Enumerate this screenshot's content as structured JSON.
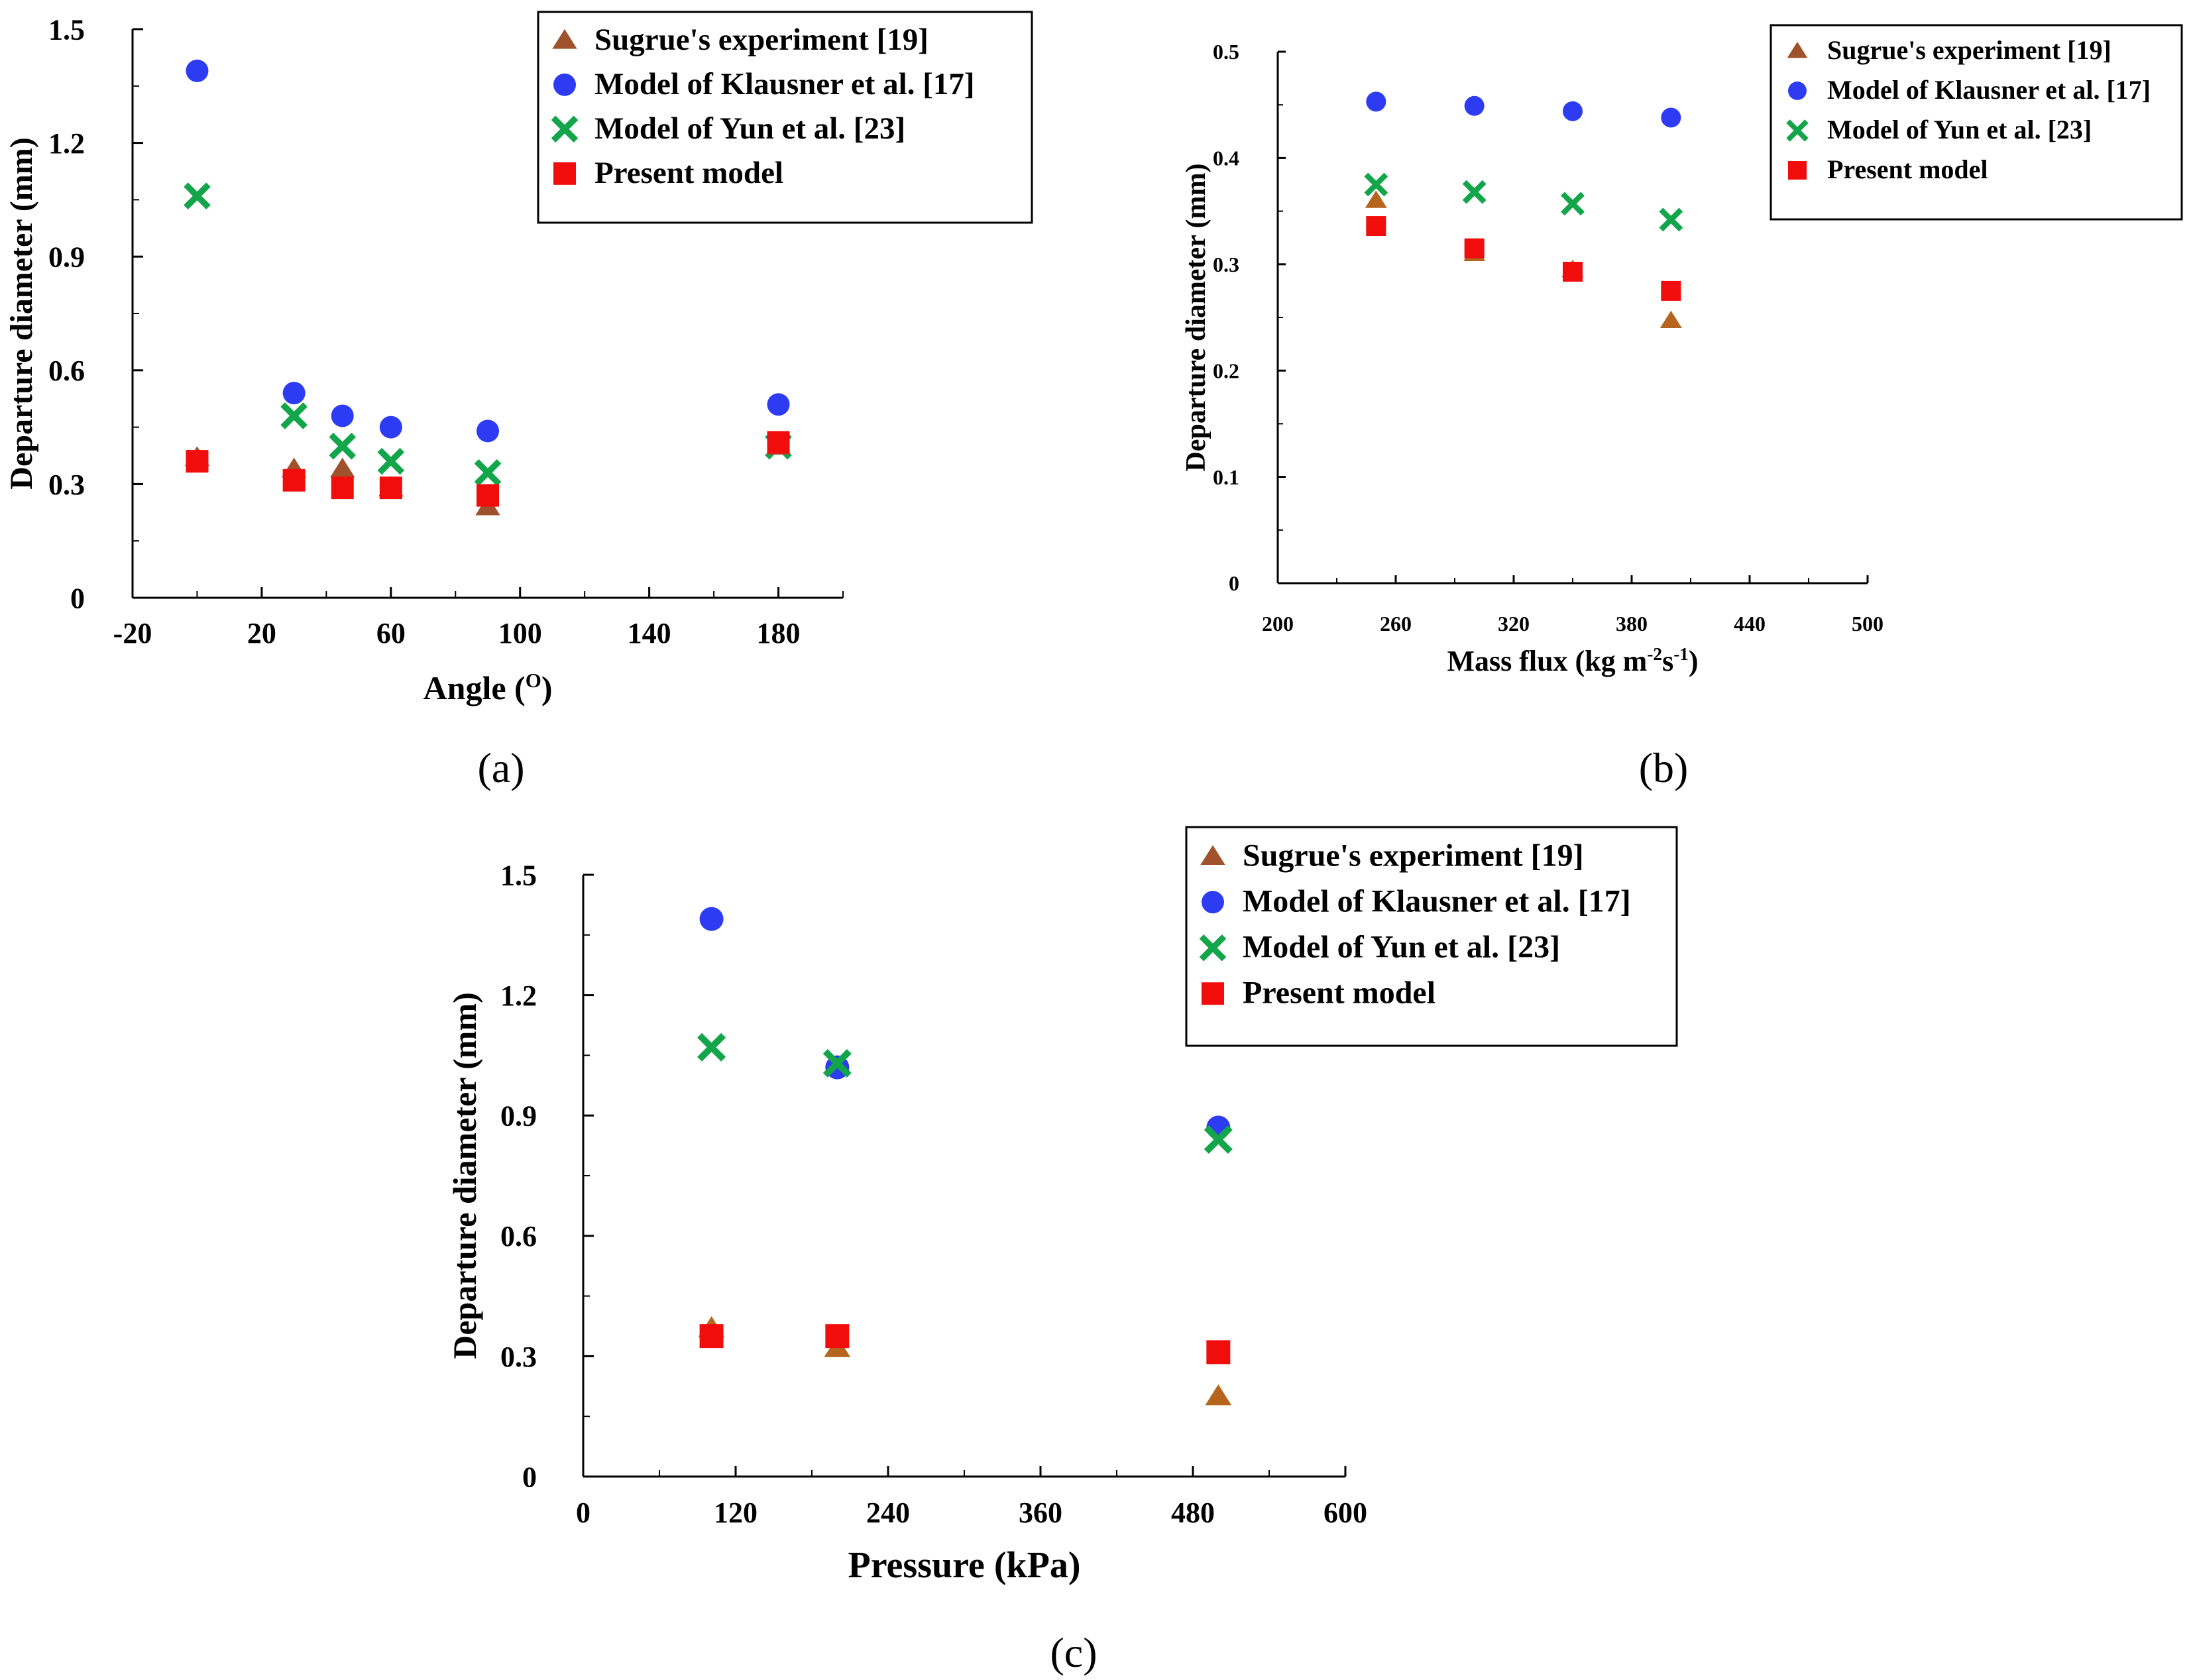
{
  "colors": {
    "sugrue": "#A0522D",
    "sugrue_alt": "#B5651D",
    "klausner": "#2D3BF2",
    "yun": "#13A54A",
    "present": "#F20D0D"
  },
  "legend_items": [
    {
      "key": "sugrue",
      "label": "Sugrue's experiment [19]",
      "marker": "triangle"
    },
    {
      "key": "klausner",
      "label": "Model of Klausner et al. [17]",
      "marker": "circle"
    },
    {
      "key": "yun",
      "label": "Model of Yun et al. [23]",
      "marker": "cross"
    },
    {
      "key": "present",
      "label": "Present model",
      "marker": "square"
    }
  ],
  "captions": {
    "a": "(a)",
    "b": "(b)",
    "c": "(c)"
  },
  "chart_data": [
    {
      "id": "a",
      "type": "scatter",
      "title": "",
      "xlabel": "Angle (",
      "xlabel_sup": "O",
      "xlabel_end": ")",
      "ylabel": "Departure diameter (mm)",
      "xlim": [
        -20,
        200
      ],
      "ylim": [
        0,
        1.5
      ],
      "xticks": [
        -20,
        20,
        60,
        100,
        140,
        180
      ],
      "xminor": [
        0,
        40,
        80,
        120,
        160,
        200
      ],
      "yticks": [
        0,
        0.3,
        0.6,
        0.9,
        1.2,
        1.5
      ],
      "ytick_labels": [
        "0",
        "0.3",
        "0.6",
        "0.9",
        "1.2",
        "1.5"
      ],
      "yminor": [
        0.15,
        0.45,
        0.75,
        1.05,
        1.35
      ],
      "series": [
        {
          "key": "sugrue",
          "name": "Sugrue's experiment [19]",
          "x": [
            0,
            30,
            45,
            60,
            90,
            180
          ],
          "y": [
            0.37,
            0.34,
            0.34,
            0.29,
            0.24,
            0.4
          ]
        },
        {
          "key": "klausner",
          "name": "Model of Klausner et al. [17]",
          "x": [
            0,
            30,
            45,
            60,
            90,
            180
          ],
          "y": [
            1.39,
            0.54,
            0.48,
            0.45,
            0.44,
            0.51
          ]
        },
        {
          "key": "yun",
          "name": "Model of Yun et al. [23]",
          "x": [
            0,
            30,
            45,
            60,
            90,
            180
          ],
          "y": [
            1.06,
            0.48,
            0.4,
            0.36,
            0.33,
            0.4
          ]
        },
        {
          "key": "present",
          "name": "Present model",
          "x": [
            0,
            30,
            45,
            60,
            90,
            180
          ],
          "y": [
            0.36,
            0.31,
            0.29,
            0.29,
            0.27,
            0.41
          ]
        }
      ]
    },
    {
      "id": "b",
      "type": "scatter",
      "title": "",
      "xlabel": "Mass flux (kg m",
      "xlabel_sup1": "-2",
      "xlabel_mid": "s",
      "xlabel_sup2": "-1",
      "xlabel_end": ")",
      "ylabel": "Departure diameter (mm)",
      "xlim": [
        200,
        500
      ],
      "ylim": [
        0,
        0.5
      ],
      "xticks": [
        200,
        260,
        320,
        380,
        440,
        500
      ],
      "xminor": [
        230,
        290,
        350,
        410,
        470
      ],
      "yticks": [
        0,
        0.1,
        0.2,
        0.3,
        0.4,
        0.5
      ],
      "ytick_labels": [
        "0",
        "0.1",
        "0.2",
        "0.3",
        "0.4",
        "0.5"
      ],
      "yminor": [
        0.05,
        0.15,
        0.25,
        0.35,
        0.45
      ],
      "series": [
        {
          "key": "sugrue",
          "name": "Sugrue's experiment [19]",
          "x": [
            250,
            300,
            350,
            400
          ],
          "y": [
            0.36,
            0.31,
            0.295,
            0.247
          ]
        },
        {
          "key": "klausner",
          "name": "Model of Klausner et al. [17]",
          "x": [
            250,
            300,
            350,
            400
          ],
          "y": [
            0.453,
            0.449,
            0.444,
            0.438
          ]
        },
        {
          "key": "yun",
          "name": "Model of Yun et al. [23]",
          "x": [
            250,
            300,
            350,
            400
          ],
          "y": [
            0.375,
            0.368,
            0.357,
            0.342
          ]
        },
        {
          "key": "present",
          "name": "Present model",
          "x": [
            250,
            300,
            350,
            400
          ],
          "y": [
            0.336,
            0.315,
            0.293,
            0.275
          ]
        }
      ]
    },
    {
      "id": "c",
      "type": "scatter",
      "title": "",
      "xlabel": "Pressure (kPa)",
      "ylabel": "Departure diameter (mm)",
      "xlim": [
        0,
        600
      ],
      "ylim": [
        0,
        1.5
      ],
      "xticks": [
        0,
        120,
        240,
        360,
        480,
        600
      ],
      "xminor": [
        60,
        180,
        300,
        420,
        540
      ],
      "yticks": [
        0,
        0.3,
        0.6,
        0.9,
        1.2,
        1.5
      ],
      "ytick_labels": [
        "0",
        "0.3",
        "0.6",
        "0.9",
        "1.2",
        "1.5"
      ],
      "yminor": [
        0.15,
        0.45,
        0.75,
        1.05,
        1.35
      ],
      "series": [
        {
          "key": "sugrue",
          "name": "Sugrue's experiment [19]",
          "x": [
            101,
            200,
            500
          ],
          "y": [
            0.37,
            0.32,
            0.2
          ]
        },
        {
          "key": "klausner",
          "name": "Model of Klausner et al. [17]",
          "x": [
            101,
            200,
            500
          ],
          "y": [
            1.39,
            1.02,
            0.87
          ]
        },
        {
          "key": "yun",
          "name": "Model of Yun et al. [23]",
          "x": [
            101,
            200,
            500
          ],
          "y": [
            1.07,
            1.03,
            0.84
          ]
        },
        {
          "key": "present",
          "name": "Present model",
          "x": [
            101,
            200,
            500
          ],
          "y": [
            0.35,
            0.35,
            0.31
          ]
        }
      ]
    }
  ]
}
